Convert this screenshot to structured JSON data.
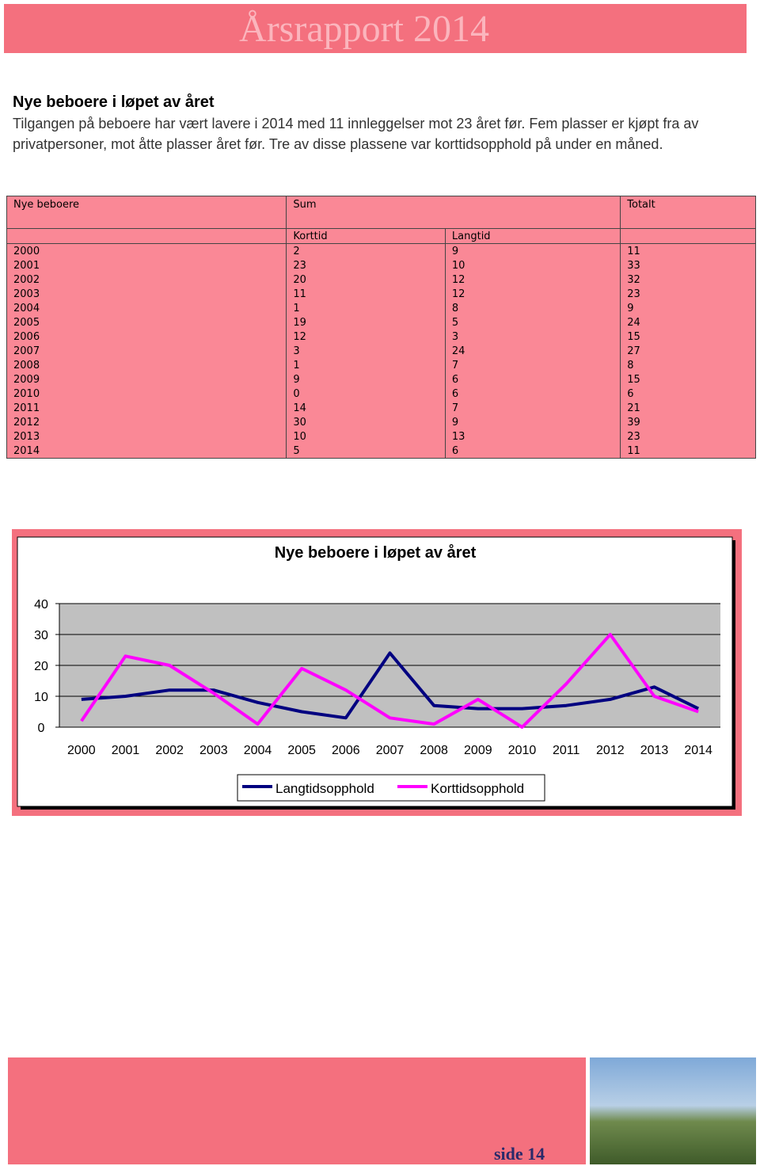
{
  "header": {
    "title": "Årsrapport 2014"
  },
  "section": {
    "heading": "Nye beboere i løpet av året",
    "paragraph": "Tilgangen på beboere har vært lavere i 2014 med 11 innleggelser mot 23 året før. Fem plasser er kjøpt fra av privatpersoner, mot åtte plasser året før. Tre av disse plassene var korttidsopphold på under en måned."
  },
  "table": {
    "header": [
      "Nye beboere",
      "Sum",
      "Totalt"
    ],
    "subheader": [
      "Korttid",
      "Langtid"
    ],
    "rows": [
      [
        "2000",
        "2",
        "9",
        "11"
      ],
      [
        "2001",
        "23",
        "10",
        "33"
      ],
      [
        "2002",
        "20",
        "12",
        "32"
      ],
      [
        "2003",
        "11",
        "12",
        "23"
      ],
      [
        "2004",
        "1",
        "8",
        "9"
      ],
      [
        "2005",
        "19",
        "5",
        "24"
      ],
      [
        "2006",
        "12",
        "3",
        "15"
      ],
      [
        "2007",
        "3",
        "24",
        "27"
      ],
      [
        "2008",
        "1",
        "7",
        "8"
      ],
      [
        "2009",
        "9",
        "6",
        "15"
      ],
      [
        "2010",
        "0",
        "6",
        "6"
      ],
      [
        "2011",
        "14",
        "7",
        "21"
      ],
      [
        "2012",
        "30",
        "9",
        "39"
      ],
      [
        "2013",
        "10",
        "13",
        "23"
      ],
      [
        "2014",
        "5",
        "6",
        "11"
      ]
    ]
  },
  "chart_data": {
    "type": "line",
    "title": "Nye beboere i løpet av året",
    "categories": [
      "2000",
      "2001",
      "2002",
      "2003",
      "2004",
      "2005",
      "2006",
      "2007",
      "2008",
      "2009",
      "2010",
      "2011",
      "2012",
      "2013",
      "2014"
    ],
    "series": [
      {
        "name": "Langtidsopphold",
        "color": "#000080",
        "values": [
          9,
          10,
          12,
          12,
          8,
          5,
          3,
          24,
          7,
          6,
          6,
          7,
          9,
          13,
          6
        ]
      },
      {
        "name": "Korttidsopphold",
        "color": "#ff00ff",
        "values": [
          2,
          23,
          20,
          11,
          1,
          19,
          12,
          3,
          1,
          9,
          0,
          14,
          30,
          10,
          5
        ]
      }
    ],
    "ylim": [
      0,
      40
    ],
    "yticks": [
      0,
      10,
      20,
      30,
      40
    ],
    "grid": true
  },
  "footer": {
    "page": "side 14"
  }
}
